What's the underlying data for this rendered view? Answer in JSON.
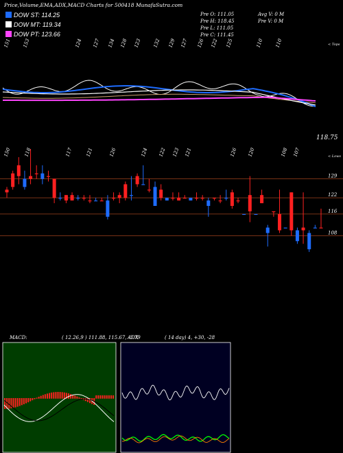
{
  "header": {
    "title": "Price,Volume,EMA,ADX,MACD Charts for 500418  MunafaSutra.com"
  },
  "legend": [
    {
      "label": "DOW ST: 114.25",
      "color": "#1e6cff"
    },
    {
      "label": "DOW MT: 119.34",
      "color": "#ffffff"
    },
    {
      "label": "DOW PT: 123.66",
      "color": "#ff44ff"
    }
  ],
  "ohlc": {
    "pre_o": "Pre  O: 111.05",
    "pre_h": "Pre  H: 118.45",
    "pre_l": "Pre  L: 111.05",
    "pre_c": "Pre  C: 111.45",
    "avg_v": "Avg V: 0  M",
    "pre_v": "Pre  V: 0  M"
  },
  "top_panel": {
    "corner_label": "< Tops",
    "last_price_label": "118.75",
    "top_labels": [
      "151",
      "153",
      "124",
      "127",
      "134",
      "128",
      "123",
      "132",
      "129",
      "127",
      "126",
      "122",
      "125",
      "110",
      "110"
    ]
  },
  "mid_panel": {
    "corner_label": "< Lows",
    "low_labels": [
      "150",
      "118",
      "117",
      "121",
      "126",
      "124",
      "122",
      "123",
      "121",
      "126",
      "120",
      "108",
      "107"
    ],
    "levels": [
      "129",
      "122",
      "116",
      "108"
    ]
  },
  "macd": {
    "label": "MACD:",
    "values": "( 12.26,9 ) 111.88, 115.67, -3.79"
  },
  "adx": {
    "label": "ADX",
    "values": "( 14  day) 4,  +30,  -28"
  },
  "chart_data": {
    "type": "candlestick",
    "title": "Price,Volume,EMA,ADX,MACD Charts for 500418",
    "horizontal_levels": [
      129,
      122,
      116,
      108
    ],
    "candles": [
      {
        "o": 124,
        "h": 126,
        "l": 122,
        "c": 125,
        "up": false
      },
      {
        "o": 126,
        "h": 132,
        "l": 125,
        "c": 131,
        "up": false
      },
      {
        "o": 130,
        "h": 137,
        "l": 127,
        "c": 134,
        "up": false
      },
      {
        "o": 126,
        "h": 132,
        "l": 125,
        "c": 129,
        "up": true
      },
      {
        "o": 129,
        "h": 140,
        "l": 127,
        "c": 130,
        "up": false
      },
      {
        "o": 131,
        "h": 134,
        "l": 129,
        "c": 131,
        "up": false
      },
      {
        "o": 129,
        "h": 134,
        "l": 127,
        "c": 131,
        "up": true
      },
      {
        "o": 130,
        "h": 132,
        "l": 128,
        "c": 130,
        "up": false
      },
      {
        "o": 129,
        "h": 129,
        "l": 120,
        "c": 122,
        "up": false
      },
      {
        "o": 122,
        "h": 124,
        "l": 121,
        "c": 122,
        "up": true
      },
      {
        "o": 121,
        "h": 123,
        "l": 120,
        "c": 123,
        "up": false
      },
      {
        "o": 123,
        "h": 124,
        "l": 121,
        "c": 121,
        "up": false
      },
      {
        "o": 122,
        "h": 123,
        "l": 121,
        "c": 122,
        "up": true
      },
      {
        "o": 122,
        "h": 123,
        "l": 121,
        "c": 122,
        "up": false
      },
      {
        "o": 121,
        "h": 123,
        "l": 120,
        "c": 121,
        "up": false
      },
      {
        "o": 121,
        "h": 122,
        "l": 121,
        "c": 121,
        "up": true
      },
      {
        "o": 121,
        "h": 122,
        "l": 121,
        "c": 121,
        "up": false
      },
      {
        "o": 115,
        "h": 123,
        "l": 114,
        "c": 121,
        "up": true
      },
      {
        "o": 122,
        "h": 124,
        "l": 121,
        "c": 122,
        "up": false
      },
      {
        "o": 122,
        "h": 124,
        "l": 120,
        "c": 123,
        "up": false
      },
      {
        "o": 122,
        "h": 128,
        "l": 121,
        "c": 127,
        "up": false
      },
      {
        "o": 123,
        "h": 130,
        "l": 121,
        "c": 123,
        "up": true
      },
      {
        "o": 130,
        "h": 131,
        "l": 126,
        "c": 127,
        "up": false
      },
      {
        "o": 127,
        "h": 134,
        "l": 127,
        "c": 127,
        "up": true
      },
      {
        "o": 125,
        "h": 129,
        "l": 124,
        "c": 125,
        "up": false
      },
      {
        "o": 126,
        "h": 128,
        "l": 119,
        "c": 119,
        "up": true
      },
      {
        "o": 122,
        "h": 127,
        "l": 121,
        "c": 125,
        "up": false
      },
      {
        "o": 122,
        "h": 122,
        "l": 121,
        "c": 121,
        "up": true
      },
      {
        "o": 122,
        "h": 124,
        "l": 121,
        "c": 122,
        "up": false
      },
      {
        "o": 121,
        "h": 124,
        "l": 121,
        "c": 122,
        "up": false
      },
      {
        "o": 122,
        "h": 123,
        "l": 122,
        "c": 122,
        "up": false
      },
      {
        "o": 122,
        "h": 122,
        "l": 121,
        "c": 121,
        "up": true
      },
      {
        "o": 122,
        "h": 124,
        "l": 121,
        "c": 122,
        "up": false
      },
      {
        "o": 122,
        "h": 123,
        "l": 121,
        "c": 122,
        "up": false
      },
      {
        "o": 121,
        "h": 122,
        "l": 115,
        "c": 119,
        "up": true
      },
      {
        "o": 122,
        "h": 122,
        "l": 121,
        "c": 122,
        "up": false
      },
      {
        "o": 121,
        "h": 123,
        "l": 120,
        "c": 121,
        "up": false
      },
      {
        "o": 122,
        "h": 125,
        "l": 121,
        "c": 122,
        "up": true
      },
      {
        "o": 124,
        "h": 125,
        "l": 118,
        "c": 119,
        "up": false
      },
      {
        "o": 121,
        "h": 122,
        "l": 120,
        "c": 121,
        "up": false
      },
      {
        "o": 116,
        "h": 116,
        "l": 116,
        "c": 116,
        "up": true
      },
      {
        "o": 123,
        "h": 130,
        "l": 113,
        "c": 117,
        "up": false
      },
      {
        "o": 116,
        "h": 116,
        "l": 116,
        "c": 116,
        "up": true
      },
      {
        "o": 123,
        "h": 125,
        "l": 120,
        "c": 120,
        "up": false
      },
      {
        "o": 111,
        "h": 112,
        "l": 104,
        "c": 109,
        "up": true
      },
      {
        "o": 117,
        "h": 117,
        "l": 115,
        "c": 117,
        "up": false
      },
      {
        "o": 116,
        "h": 125,
        "l": 109,
        "c": 110,
        "up": false
      },
      {
        "o": 111,
        "h": 111,
        "l": 111,
        "c": 111,
        "up": true
      },
      {
        "o": 124,
        "h": 124,
        "l": 108,
        "c": 110,
        "up": false
      },
      {
        "o": 110,
        "h": 111,
        "l": 105,
        "c": 106,
        "up": true
      },
      {
        "o": 111,
        "h": 124,
        "l": 105,
        "c": 110,
        "up": false
      },
      {
        "o": 109,
        "h": 110,
        "l": 102,
        "c": 103,
        "up": true
      },
      {
        "o": 111,
        "h": 112,
        "l": 111,
        "c": 111,
        "up": true
      },
      {
        "o": 111,
        "h": 118,
        "l": 111,
        "c": 111,
        "up": false
      }
    ]
  }
}
